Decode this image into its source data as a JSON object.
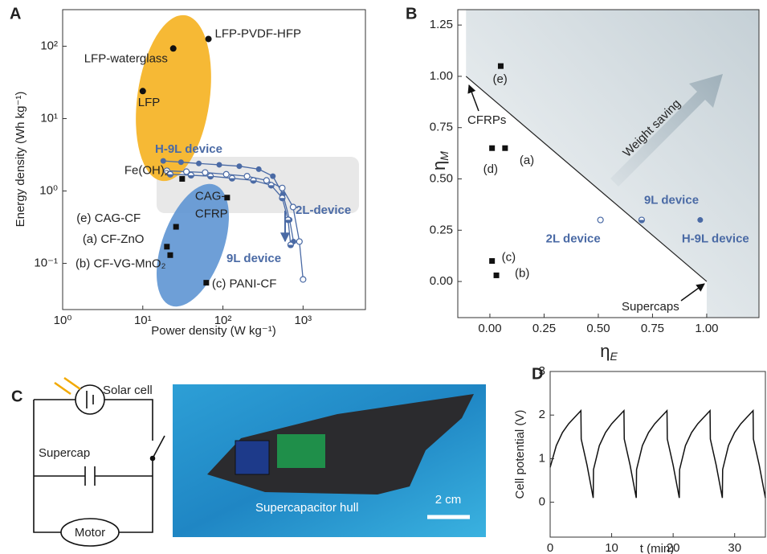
{
  "panels": [
    "A",
    "B",
    "C",
    "D"
  ],
  "chart_data": [
    {
      "type": "scatter",
      "xscale": "log",
      "yscale": "log",
      "x_label": "Power density (W kg⁻¹)",
      "y_label": "Energy density (Wh kg⁻¹)",
      "xlim": [
        1,
        6000
      ],
      "ylim": [
        0.023,
        320
      ],
      "xticks": [
        {
          "value": 1,
          "label": "10⁰"
        },
        {
          "value": 10,
          "label": "10¹"
        },
        {
          "value": 100,
          "label": "10²"
        },
        {
          "value": 1000,
          "label": "10³"
        }
      ],
      "yticks": [
        {
          "value": 0.1,
          "label": "10⁻¹"
        },
        {
          "value": 1,
          "label": "10⁰"
        },
        {
          "value": 10,
          "label": "10¹"
        },
        {
          "value": 100,
          "label": "10²"
        }
      ],
      "points": {
        "x": [
          66,
          24,
          10,
          31,
          113,
          26,
          20,
          22,
          62
        ],
        "y": [
          126,
          93,
          24,
          1.47,
          0.81,
          0.32,
          0.17,
          0.13,
          0.054
        ],
        "labels": [
          [
            "LFP-PVDF-HFP"
          ],
          [
            "LFP-waterglass"
          ],
          [
            "LFP"
          ],
          [
            "Fe(OH)₂"
          ],
          [
            "CAG-",
            "CFRP"
          ],
          [
            "(e) CAG-CF"
          ],
          [
            "(a) CF-ZnO"
          ],
          [
            "(b) CF-VG-MnO₂"
          ],
          [
            "(c) PANI-CF"
          ]
        ],
        "markers": [
          "circle",
          "circle",
          "circle",
          "square",
          "square",
          "square",
          "square",
          "square",
          "square"
        ],
        "color": "#111111"
      },
      "series": [
        {
          "name": "H-9L device",
          "color": "#4a6aa5",
          "marker": "filled",
          "x": [
            18,
            30,
            50,
            90,
            160,
            280,
            420,
            560,
            680,
            760
          ],
          "y": [
            2.6,
            2.5,
            2.4,
            2.3,
            2.2,
            2.0,
            1.6,
            0.9,
            0.4,
            0.2
          ]
        },
        {
          "name": "2L-device",
          "color": "#4a6aa5",
          "marker": "open",
          "x": [
            20,
            35,
            60,
            110,
            200,
            350,
            550,
            750,
            900,
            1000
          ],
          "y": [
            1.9,
            1.85,
            1.8,
            1.7,
            1.6,
            1.4,
            1.1,
            0.6,
            0.2,
            0.06
          ]
        },
        {
          "name": "9L device",
          "color": "#4a6aa5",
          "marker": "half",
          "x": [
            22,
            40,
            70,
            130,
            240,
            400,
            550,
            650,
            700
          ],
          "y": [
            1.7,
            1.65,
            1.6,
            1.5,
            1.4,
            1.2,
            0.8,
            0.4,
            0.18
          ]
        }
      ]
    },
    {
      "type": "scatter",
      "x_label": {
        "symbol": "η",
        "subscript": "E"
      },
      "y_label": {
        "symbol": "η",
        "subscript": "M"
      },
      "xlim": [
        -0.148,
        1.241
      ],
      "ylim": [
        -0.176,
        1.325
      ],
      "xticks": [
        {
          "value": 0,
          "label": "0.00"
        },
        {
          "value": 0.25,
          "label": "0.25"
        },
        {
          "value": 0.5,
          "label": "0.50"
        },
        {
          "value": 0.75,
          "label": "0.75"
        },
        {
          "value": 1,
          "label": "1.00"
        }
      ],
      "yticks": [
        {
          "value": 0,
          "label": "0.00"
        },
        {
          "value": 0.25,
          "label": "0.25"
        },
        {
          "value": 0.5,
          "label": "0.50"
        },
        {
          "value": 0.75,
          "label": "0.75"
        },
        {
          "value": 1,
          "label": "1.00"
        },
        {
          "value": 1.25,
          "label": "1.25"
        }
      ],
      "boundary": {
        "x": [
          -0.11,
          1.0
        ],
        "y": [
          1.0,
          0.0
        ]
      },
      "points": {
        "x": [
          0.05,
          0.01,
          0.07,
          0.01,
          0.03,
          0.51,
          0.7,
          0.97
        ],
        "y": [
          1.05,
          0.65,
          0.65,
          0.1,
          0.03,
          0.3,
          0.3,
          0.3
        ],
        "labels": [
          "(e)",
          "(d)",
          "(a)",
          "(c)",
          "(b)",
          "2L device",
          "9L device",
          "H-9L device"
        ],
        "markers": [
          "square",
          "square",
          "square",
          "square",
          "square",
          "open",
          "half",
          "filled"
        ],
        "colors": [
          "#111111",
          "#111111",
          "#111111",
          "#111111",
          "#111111",
          "#4a6aa5",
          "#4a6aa5",
          "#4a6aa5"
        ]
      },
      "annotations": [
        "CFRPs",
        "Supercaps",
        "Weight saving"
      ]
    },
    {
      "type": "line",
      "x_label": "t (min)",
      "y_label": "Cell potential (V)",
      "xlim": [
        0,
        35
      ],
      "ylim": [
        -0.8,
        3
      ],
      "xticks": [
        0,
        10,
        20,
        30
      ],
      "yticks": [
        0,
        1,
        2,
        3
      ],
      "color": "#111111",
      "x": [
        0,
        1,
        2,
        3,
        4,
        5,
        5.05,
        6,
        7,
        7.05,
        8,
        9,
        10,
        11,
        12,
        12.05,
        13,
        14,
        14.05,
        15,
        16,
        17,
        18,
        19,
        19.05,
        20,
        21,
        21.05,
        22,
        23,
        24,
        25,
        26,
        26.05,
        27,
        28,
        28.05,
        29,
        30,
        31,
        32,
        33,
        33.05,
        34,
        35
      ],
      "values": [
        0.8,
        1.3,
        1.6,
        1.8,
        1.95,
        2.1,
        1.45,
        0.85,
        0.1,
        0.75,
        1.3,
        1.6,
        1.8,
        1.95,
        2.1,
        1.45,
        0.85,
        0.1,
        0.75,
        1.3,
        1.6,
        1.8,
        1.95,
        2.1,
        1.45,
        0.85,
        0.1,
        0.75,
        1.3,
        1.6,
        1.8,
        1.95,
        2.1,
        1.45,
        0.85,
        0.1,
        0.75,
        1.3,
        1.6,
        1.8,
        1.95,
        2.1,
        1.45,
        0.85,
        0.1
      ]
    }
  ],
  "circuit": {
    "labels": [
      "Solar cell",
      "Supercap",
      "Motor"
    ]
  },
  "photo": {
    "caption": "Supercapacitor hull",
    "scale_bar": "2 cm"
  }
}
